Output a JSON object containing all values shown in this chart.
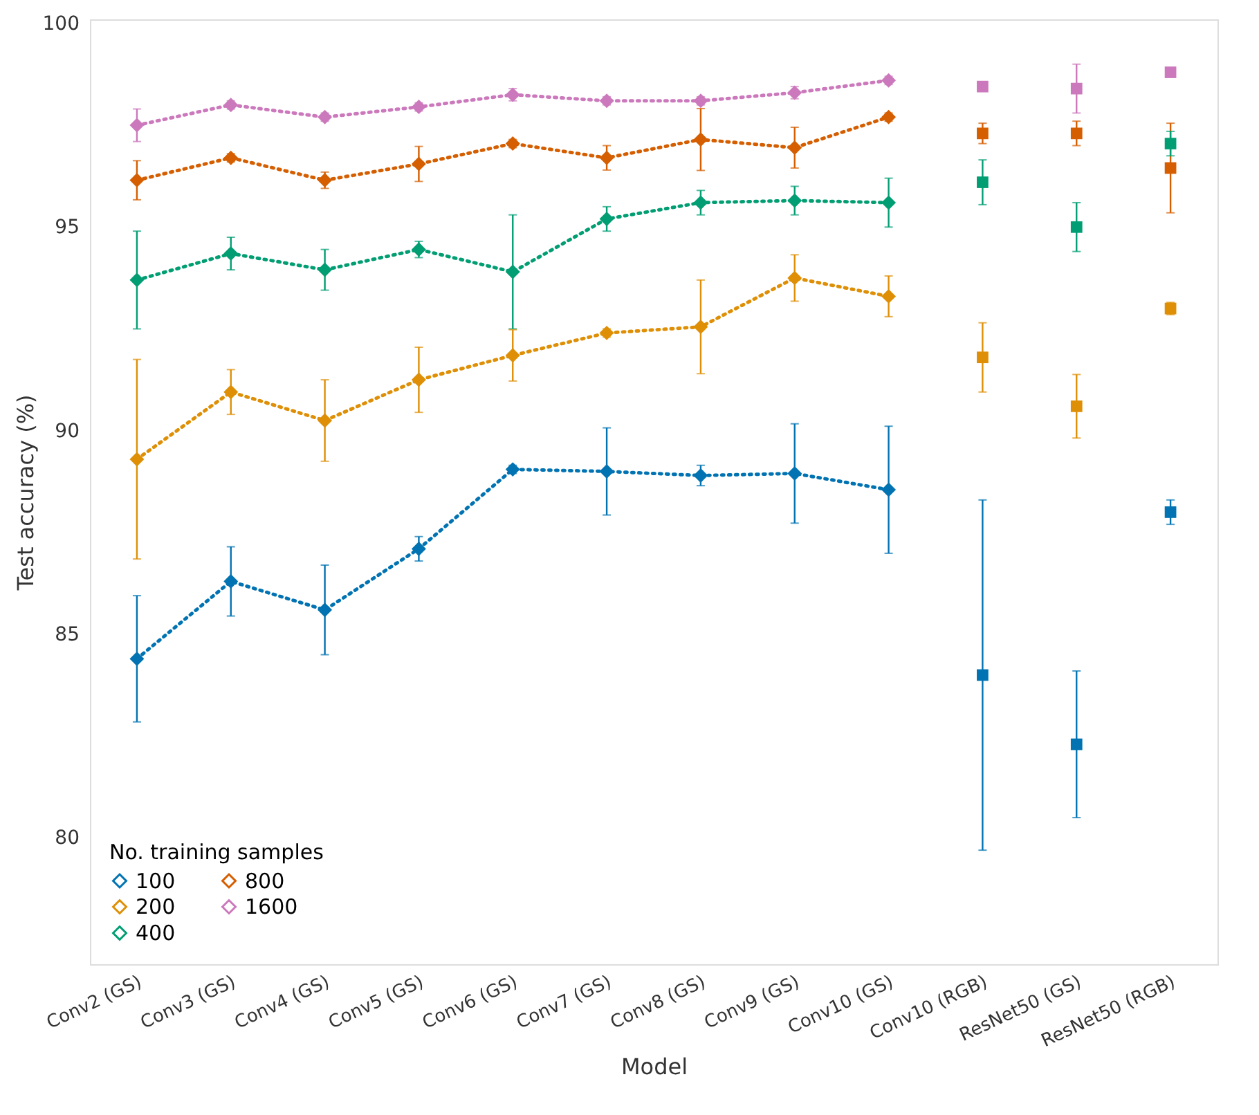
{
  "chart_data": {
    "type": "line",
    "xlabel": "Model",
    "ylabel": "Test accuracy (%)",
    "legend_title": "No. training samples",
    "legend": "bottom left",
    "grid": false,
    "categories": [
      "Conv2 (GS)",
      "Conv3 (GS)",
      "Conv4 (GS)",
      "Conv5 (GS)",
      "Conv6 (GS)",
      "Conv7 (GS)",
      "Conv8 (GS)",
      "Conv9 (GS)",
      "Conv10 (GS)",
      "Conv10 (RGB)",
      "ResNet50 (GS)",
      "ResNet50 (RGB)"
    ],
    "ylim": [
      76.9,
      100.1
    ],
    "yticks": [
      80,
      85,
      90,
      95,
      100
    ],
    "series": [
      {
        "name": "100",
        "marker": "diamond",
        "line_style": "dotted",
        "color": "#0173b2",
        "values": [
          84.4,
          86.3,
          85.6,
          87.1,
          89.05,
          89.0,
          88.9,
          88.95,
          88.55,
          null,
          null,
          null
        ],
        "errors": [
          1.55,
          0.85,
          1.1,
          0.3,
          0.1,
          1.07,
          0.25,
          1.22,
          1.56,
          null,
          null,
          null
        ]
      },
      {
        "name": "200",
        "marker": "diamond",
        "line_style": "dotted",
        "color": "#de8f05",
        "values": [
          89.3,
          90.95,
          90.25,
          91.25,
          91.85,
          92.4,
          92.55,
          93.75,
          93.3,
          null,
          null,
          null
        ],
        "errors": [
          2.45,
          0.55,
          1.0,
          0.8,
          0.63,
          0.1,
          1.15,
          0.57,
          0.5,
          null,
          null,
          null
        ]
      },
      {
        "name": "400",
        "marker": "diamond",
        "line_style": "dotted",
        "color": "#029e73",
        "values": [
          93.7,
          94.35,
          93.95,
          94.45,
          93.9,
          95.2,
          95.6,
          95.65,
          95.6,
          null,
          null,
          null
        ],
        "errors": [
          1.2,
          0.4,
          0.5,
          0.2,
          1.4,
          0.3,
          0.3,
          0.35,
          0.6,
          null,
          null,
          null
        ]
      },
      {
        "name": "800",
        "marker": "diamond",
        "line_style": "dotted",
        "color": "#d55e00",
        "values": [
          96.15,
          96.7,
          96.15,
          96.55,
          97.05,
          96.7,
          97.15,
          96.95,
          97.7,
          null,
          null,
          null
        ],
        "errors": [
          0.48,
          0.1,
          0.2,
          0.43,
          0.1,
          0.3,
          0.76,
          0.5,
          0.1,
          null,
          null,
          null
        ]
      },
      {
        "name": "1600",
        "marker": "diamond",
        "line_style": "dotted",
        "color": "#cc78bc",
        "values": [
          97.5,
          98.0,
          97.7,
          97.95,
          98.25,
          98.1,
          98.1,
          98.3,
          98.6,
          null,
          null,
          null
        ],
        "errors": [
          0.4,
          0.1,
          0.1,
          0.1,
          0.15,
          0.1,
          0.1,
          0.15,
          0.1,
          null,
          null,
          null
        ]
      },
      {
        "type": "scatter",
        "marker": "square",
        "color": "#0173b2",
        "values": [
          null,
          null,
          null,
          null,
          null,
          null,
          null,
          null,
          null,
          84.0,
          82.3,
          88.0
        ],
        "errors": [
          null,
          null,
          null,
          null,
          null,
          null,
          null,
          null,
          null,
          4.3,
          1.8,
          0.3
        ]
      },
      {
        "type": "scatter",
        "marker": "square",
        "color": "#de8f05",
        "values": [
          null,
          null,
          null,
          null,
          null,
          null,
          null,
          null,
          null,
          91.8,
          90.6,
          93.0
        ],
        "errors": [
          null,
          null,
          null,
          null,
          null,
          null,
          null,
          null,
          null,
          0.85,
          0.78,
          0.15
        ]
      },
      {
        "type": "scatter",
        "marker": "square",
        "color": "#029e73",
        "values": [
          null,
          null,
          null,
          null,
          null,
          null,
          null,
          null,
          null,
          96.1,
          95.0,
          97.05
        ],
        "errors": [
          null,
          null,
          null,
          null,
          null,
          null,
          null,
          null,
          null,
          0.55,
          0.6,
          0.3
        ]
      },
      {
        "type": "scatter",
        "marker": "square",
        "color": "#d55e00",
        "values": [
          null,
          null,
          null,
          null,
          null,
          null,
          null,
          null,
          null,
          97.3,
          97.3,
          96.45
        ],
        "errors": [
          null,
          null,
          null,
          null,
          null,
          null,
          null,
          null,
          null,
          0.25,
          0.3,
          1.1
        ]
      },
      {
        "type": "scatter",
        "marker": "square",
        "color": "#cc78bc",
        "values": [
          null,
          null,
          null,
          null,
          null,
          null,
          null,
          null,
          null,
          98.45,
          98.4,
          98.8
        ],
        "errors": [
          null,
          null,
          null,
          null,
          null,
          null,
          null,
          null,
          null,
          0.1,
          0.6,
          0.1
        ]
      }
    ]
  }
}
